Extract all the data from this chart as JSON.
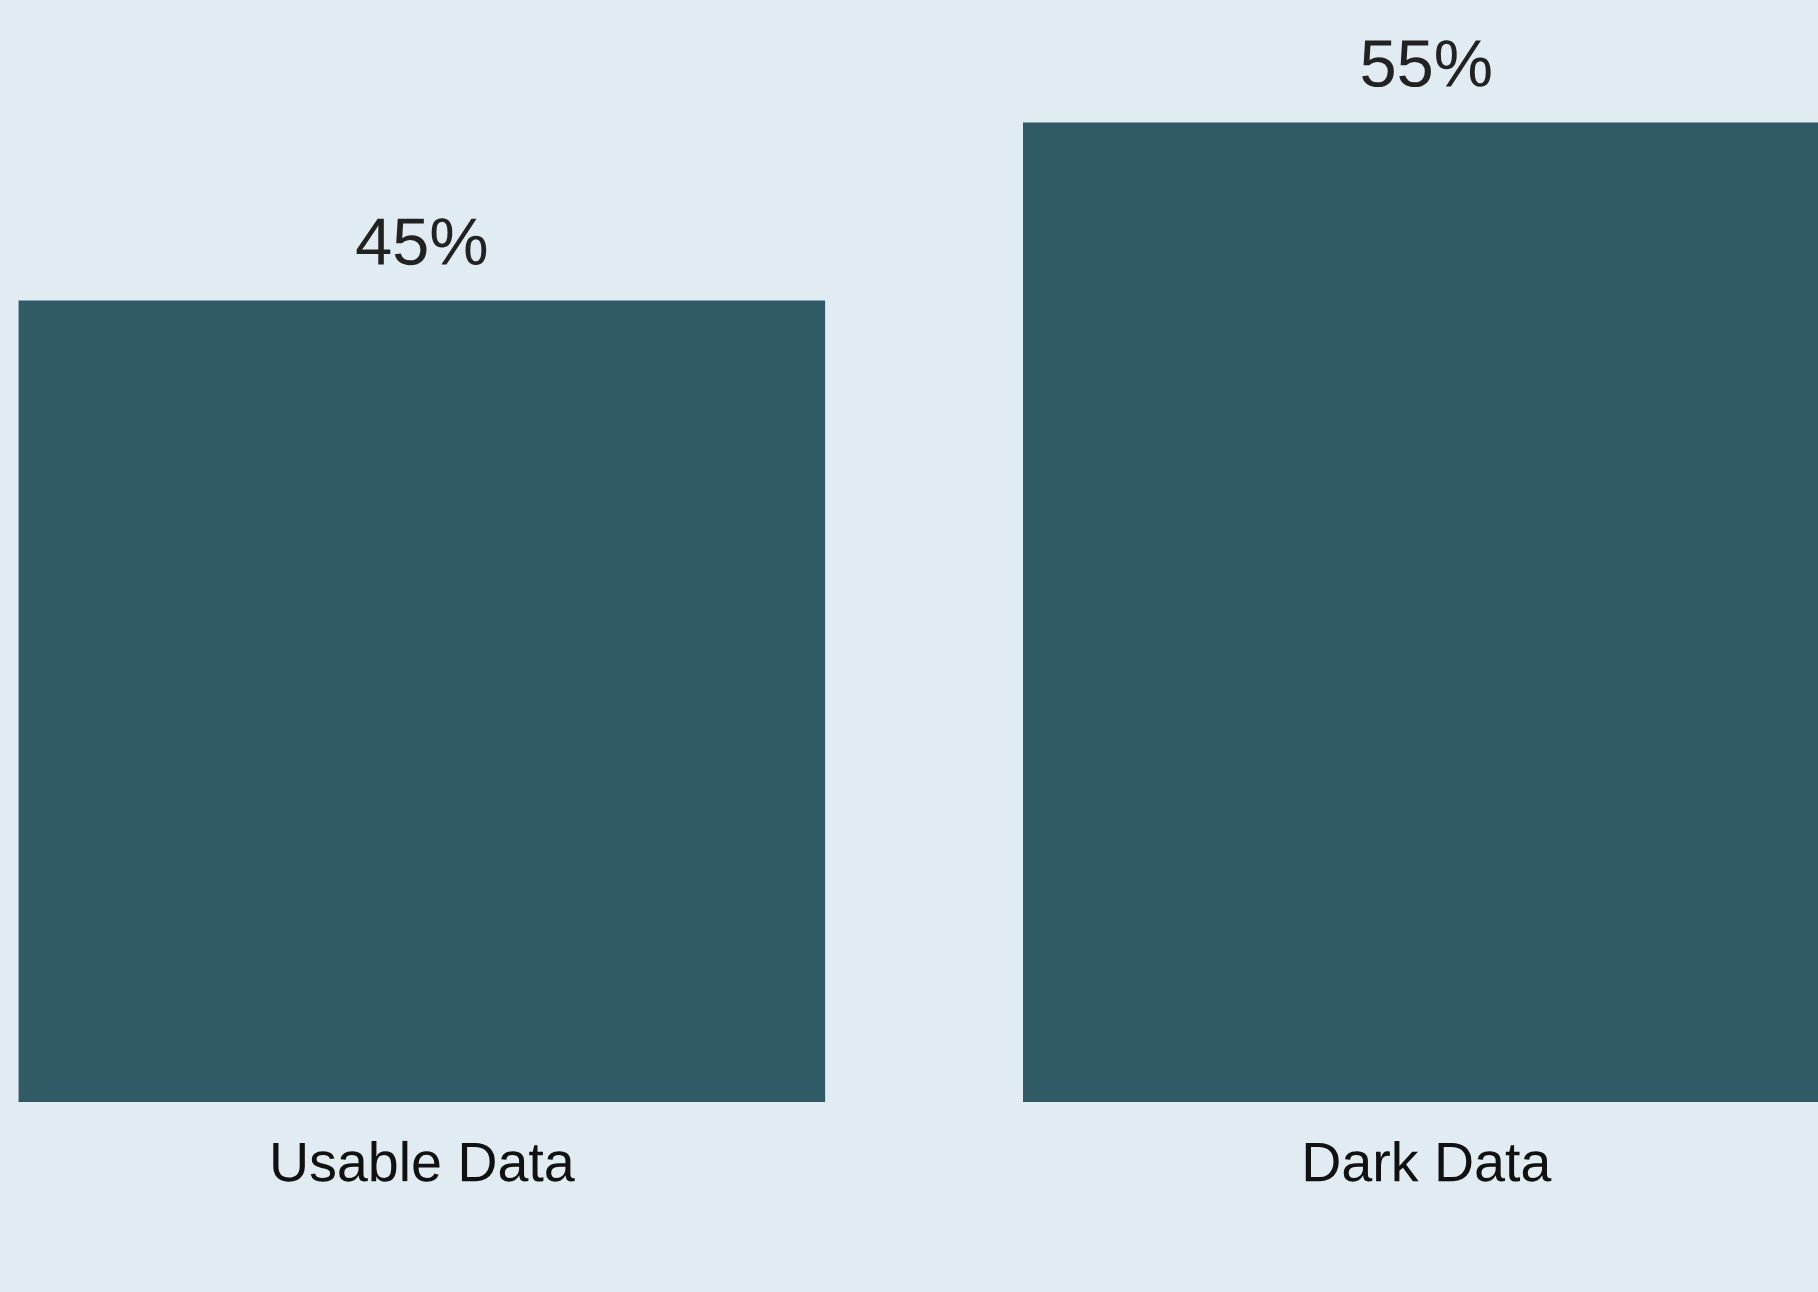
{
  "chart_data": {
    "type": "bar",
    "categories": [
      "Usable Data",
      "Dark Data"
    ],
    "values": [
      45,
      55
    ],
    "value_labels": [
      "45%",
      "55%"
    ],
    "color": "#2f5a66"
  }
}
